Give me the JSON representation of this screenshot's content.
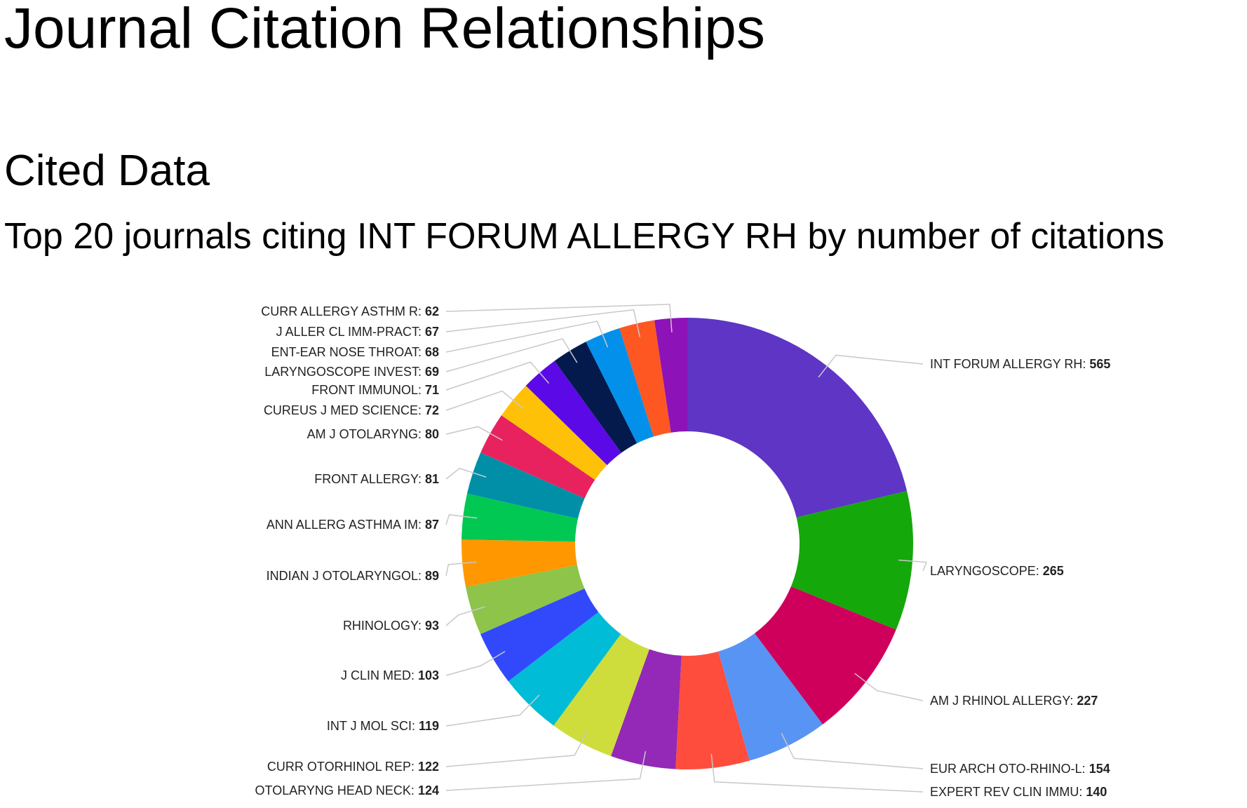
{
  "page": {
    "title": "Journal Citation Relationships",
    "section_title": "Cited Data",
    "subtitle": "Top 20 journals citing INT FORUM ALLERGY RH by number of citations"
  },
  "chart_data": {
    "type": "pie",
    "variant": "donut",
    "title": "Top 20 journals citing INT FORUM ALLERGY RH by number of citations",
    "label_format": "name: value",
    "legend": "none",
    "slices": [
      {
        "label": "INT FORUM ALLERGY RH",
        "value": 565,
        "color": "#5e35c4"
      },
      {
        "label": "LARYNGOSCOPE",
        "value": 265,
        "color": "#15a80a"
      },
      {
        "label": "AM J RHINOL ALLERGY",
        "value": 227,
        "color": "#cf005c"
      },
      {
        "label": "EUR ARCH OTO-RHINO-L",
        "value": 154,
        "color": "#5894f3"
      },
      {
        "label": "EXPERT REV CLIN IMMU",
        "value": 140,
        "color": "#ff4d3d"
      },
      {
        "label": "OTOLARYNG HEAD NECK",
        "value": 124,
        "color": "#9329b6"
      },
      {
        "label": "CURR OTORHINOL REP",
        "value": 122,
        "color": "#cedd3b"
      },
      {
        "label": "INT J MOL SCI",
        "value": 119,
        "color": "#00bcd6"
      },
      {
        "label": "J CLIN MED",
        "value": 103,
        "color": "#3149fb"
      },
      {
        "label": "RHINOLOGY",
        "value": 93,
        "color": "#8dc449"
      },
      {
        "label": "INDIAN J OTOLARYNGOL",
        "value": 89,
        "color": "#ff9800"
      },
      {
        "label": "ANN ALLERG ASTHMA IM",
        "value": 87,
        "color": "#00c853"
      },
      {
        "label": "FRONT ALLERGY",
        "value": 81,
        "color": "#008fa6"
      },
      {
        "label": "AM J OTOLARYNG",
        "value": 80,
        "color": "#e8225e"
      },
      {
        "label": "CUREUS J MED SCIENCE",
        "value": 72,
        "color": "#ffc107"
      },
      {
        "label": "FRONT IMMUNOL",
        "value": 71,
        "color": "#5b09e6"
      },
      {
        "label": "LARYNGOSCOPE INVEST",
        "value": 69,
        "color": "#051a4c"
      },
      {
        "label": "ENT-EAR NOSE THROAT",
        "value": 68,
        "color": "#0390ea"
      },
      {
        "label": "J ALLER CL IMM-PRACT",
        "value": 67,
        "color": "#ff5722"
      },
      {
        "label": "CURR ALLERGY ASTHM R",
        "value": 62,
        "color": "#8d13b8"
      }
    ]
  }
}
